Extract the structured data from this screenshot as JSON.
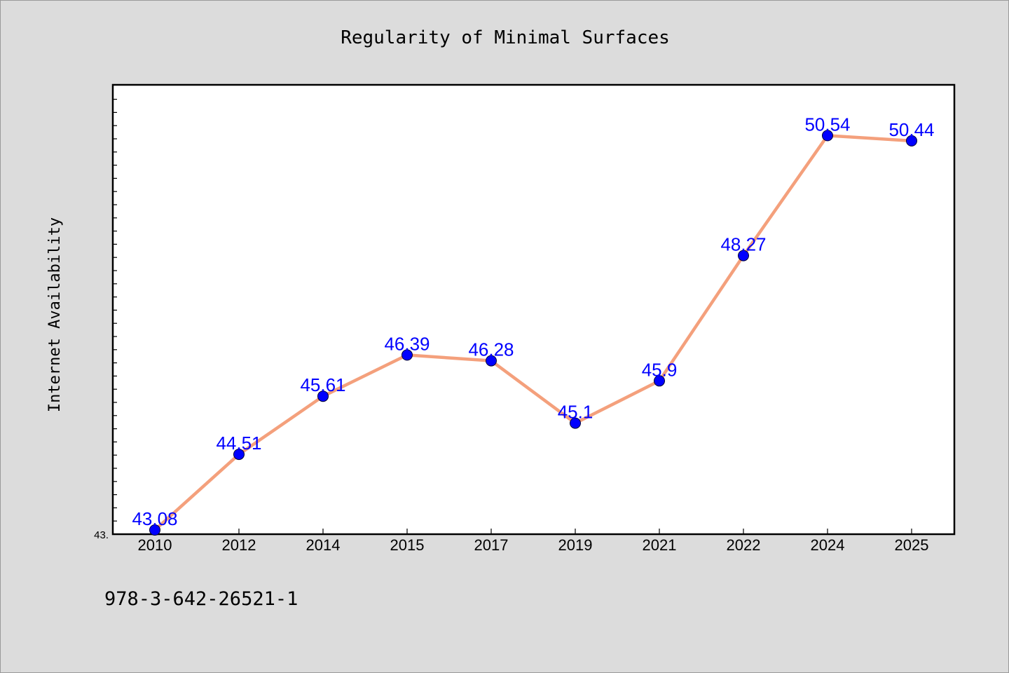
{
  "chart_data": {
    "type": "line",
    "title": "Regularity of Minimal Surfaces",
    "xlabel": "",
    "ylabel": "Internet Availability",
    "categories": [
      "2010",
      "2012",
      "2014",
      "2015",
      "2017",
      "2019",
      "2021",
      "2022",
      "2024",
      "2025"
    ],
    "series": [
      {
        "values": [
          43.08,
          44.51,
          45.61,
          46.39,
          46.28,
          45.1,
          45.9,
          48.27,
          50.54,
          50.44
        ],
        "labels": [
          "43.08",
          "44.51",
          "45.61",
          "46.39",
          "46.28",
          "45.1",
          "45.9",
          "48.27",
          "50.54",
          "50.44"
        ]
      }
    ],
    "ylim": [
      43.0,
      51.5
    ],
    "y_tick_label": "43.",
    "grid": false,
    "legend": "none"
  },
  "footer": {
    "isbn": "978-3-642-26521-1"
  },
  "colors": {
    "line": "#f4a07c",
    "marker": "#0000ff",
    "label": "#0000ff",
    "background": "#dcdcdc",
    "plot_background": "#ffffff"
  }
}
